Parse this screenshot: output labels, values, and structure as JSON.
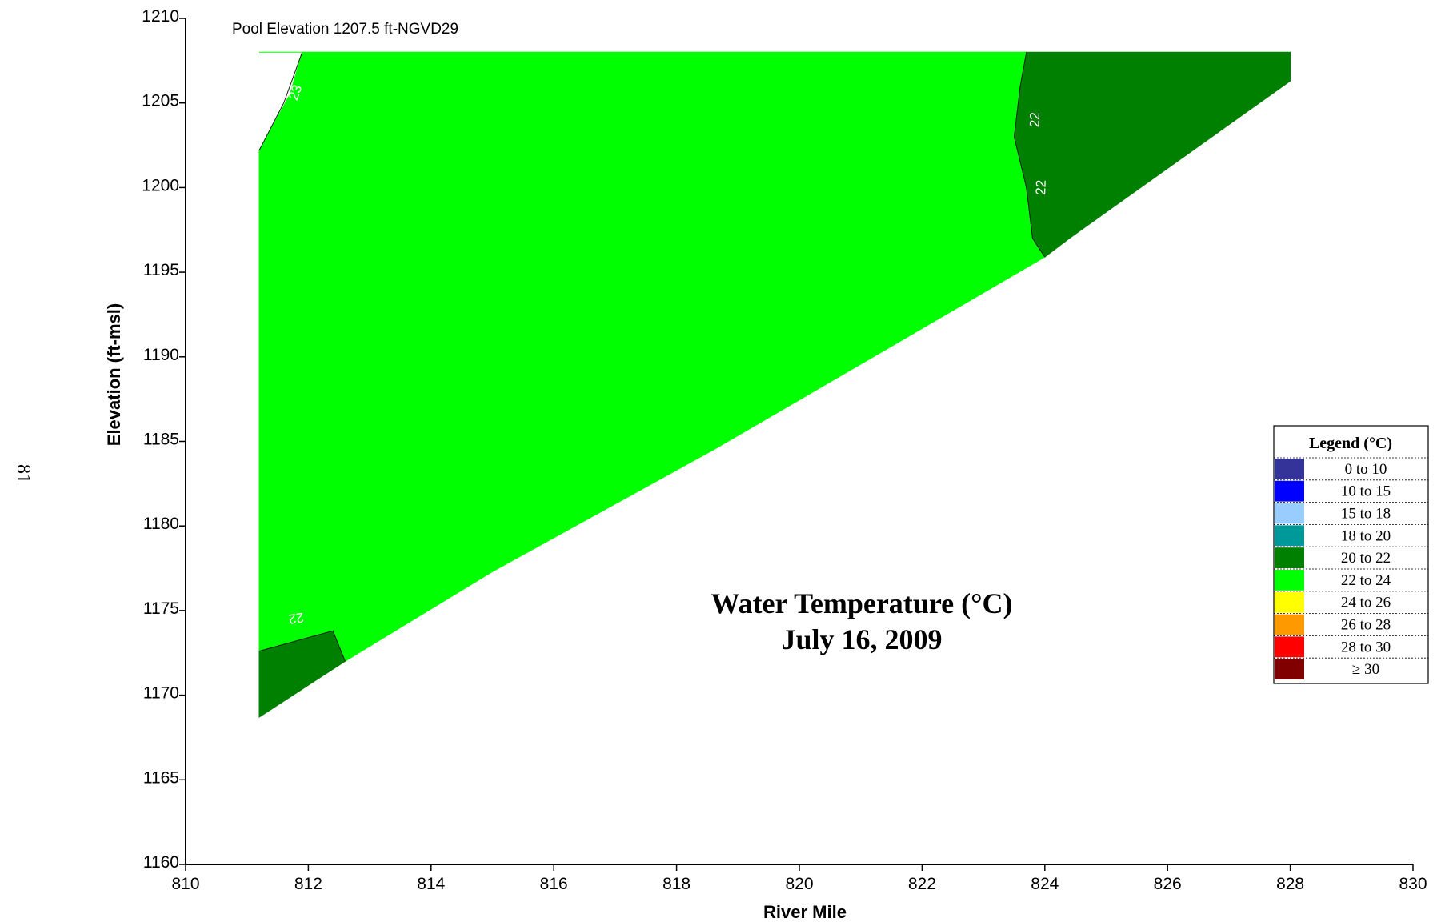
{
  "page_number": "81",
  "chart_data": {
    "type": "heatmap",
    "subtype": "contour",
    "annotation": "Pool Elevation 1207.5 ft-NGVD29",
    "title_lines": [
      "Water Temperature (°C)",
      "July 16, 2009"
    ],
    "xlabel": "River Mile",
    "ylabel": "Elevation (ft-msl)",
    "xlim": [
      810,
      830
    ],
    "ylim": [
      1160,
      1210
    ],
    "xticks": [
      810,
      812,
      814,
      816,
      818,
      820,
      822,
      824,
      826,
      828,
      830
    ],
    "yticks": [
      1160,
      1165,
      1170,
      1175,
      1180,
      1185,
      1190,
      1195,
      1200,
      1205,
      1210
    ],
    "regions": [
      {
        "band": "22 to 24",
        "color": "#00FF00",
        "polygon": [
          [
            811.2,
            1208
          ],
          [
            823.7,
            1208
          ],
          [
            823.6,
            1206
          ],
          [
            823.5,
            1203
          ],
          [
            823.7,
            1200
          ],
          [
            823.8,
            1197
          ],
          [
            824.0,
            1195.9
          ],
          [
            818.6,
            1184.5
          ],
          [
            815.0,
            1177.3
          ],
          [
            812.6,
            1172
          ],
          [
            812.4,
            1173.8
          ],
          [
            811.2,
            1172.6
          ],
          [
            811.2,
            1202.2
          ],
          [
            811.7,
            1205.5
          ],
          [
            811.9,
            1208
          ]
        ]
      },
      {
        "band": "20 to 22",
        "color": "#008000",
        "polygon": [
          [
            823.7,
            1208
          ],
          [
            828.0,
            1208
          ],
          [
            828.0,
            1206.3
          ],
          [
            824.4,
            1197
          ],
          [
            824.0,
            1195.9
          ],
          [
            823.8,
            1197
          ],
          [
            823.7,
            1200
          ],
          [
            823.5,
            1203
          ],
          [
            823.6,
            1206
          ]
        ]
      },
      {
        "band": "20 to 22",
        "color": "#008000",
        "polygon": [
          [
            811.2,
            1172.6
          ],
          [
            812.4,
            1173.8
          ],
          [
            812.6,
            1172
          ],
          [
            811.2,
            1168.7
          ]
        ]
      }
    ],
    "contours": [
      {
        "label": "23",
        "points": [
          [
            811.2,
            1202.2
          ],
          [
            811.6,
            1205
          ],
          [
            811.8,
            1207
          ],
          [
            811.9,
            1208
          ]
        ]
      },
      {
        "label": "22",
        "points": [
          [
            823.7,
            1208
          ],
          [
            823.6,
            1206
          ],
          [
            823.5,
            1203
          ],
          [
            823.7,
            1200
          ],
          [
            823.8,
            1197
          ],
          [
            824.0,
            1195.9
          ]
        ]
      },
      {
        "label": "22",
        "points": [
          [
            811.2,
            1172.6
          ],
          [
            812.4,
            1173.8
          ],
          [
            812.6,
            1172
          ]
        ]
      }
    ],
    "contour_labels": [
      {
        "text": "23",
        "x": 811.8,
        "y": 1205.6,
        "angle": -70
      },
      {
        "text": "22",
        "x": 823.85,
        "y": 1204,
        "angle": -88
      },
      {
        "text": "22",
        "x": 823.95,
        "y": 1200,
        "angle": -88
      },
      {
        "text": "22",
        "x": 811.8,
        "y": 1174.6,
        "angle": 172
      }
    ],
    "legend": {
      "title": "Legend (°C)",
      "items": [
        {
          "label": "0 to 10",
          "color": "#333399"
        },
        {
          "label": "10 to 15",
          "color": "#0000FF"
        },
        {
          "label": "15 to 18",
          "color": "#99CCFF"
        },
        {
          "label": "18 to 20",
          "color": "#009999"
        },
        {
          "label": "20 to 22",
          "color": "#008000"
        },
        {
          "label": "22 to 24",
          "color": "#00FF00"
        },
        {
          "label": "24 to 26",
          "color": "#FFFF00"
        },
        {
          "label": "26 to 28",
          "color": "#FF9900"
        },
        {
          "label": "28 to 30",
          "color": "#FF0000"
        },
        {
          "label": "≥ 30",
          "color": "#800000"
        }
      ]
    }
  }
}
